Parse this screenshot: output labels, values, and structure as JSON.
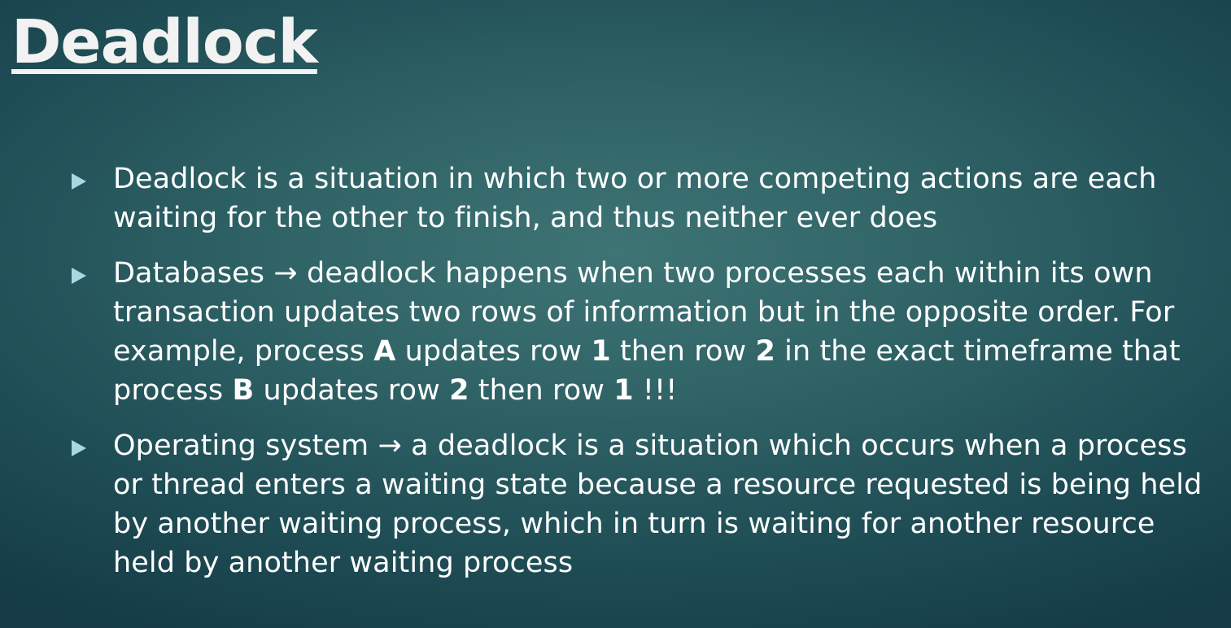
{
  "slide": {
    "title": "Deadlock",
    "bullets": [
      {
        "icon": "triangle-bullet-icon",
        "segments": [
          "Deadlock is a situation in which two or more competing actions are each waiting for the other to finish, and thus neither ever does"
        ]
      },
      {
        "icon": "triangle-bullet-icon",
        "segments": {
          "s1": "Databases → deadlock happens when two processes each within its own transaction updates two rows of information but in the opposite order. For example, process ",
          "b1": "A",
          "s2": " updates row ",
          "b2": "1",
          "s3": " then row ",
          "b3": "2",
          "s4": " in the exact timeframe that process ",
          "b4": "B",
          "s5": " updates row ",
          "b5": "2",
          "s6": " then row ",
          "b6": "1",
          "s7": " !!!"
        }
      },
      {
        "icon": "triangle-bullet-icon",
        "segments": [
          "Operating system → a deadlock is a situation which occurs when a process or thread enters a waiting state because a resource requested is being held by another waiting process, which in turn is waiting for another resource held by another waiting process"
        ]
      }
    ]
  },
  "colors": {
    "bullet_marker": "#a9d7e3",
    "text": "#ffffff",
    "background_center": "#3f7475",
    "background_edge": "#143b46"
  }
}
